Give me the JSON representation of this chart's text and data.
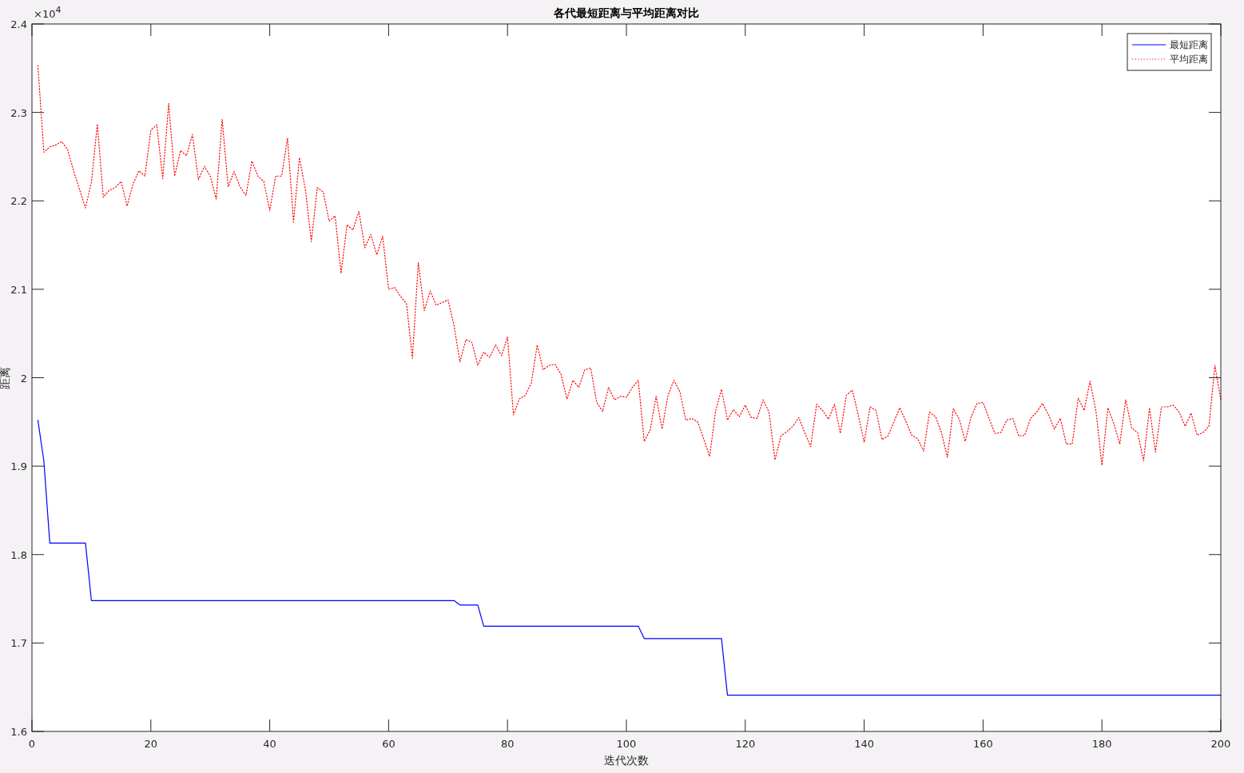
{
  "chart_data": {
    "type": "line",
    "title": "各代最短距离与平均距离对比",
    "xlabel": "迭代次数",
    "ylabel": "距离",
    "xlim": [
      0,
      200
    ],
    "ylim": [
      1.6,
      2.4
    ],
    "xticks": [
      0,
      20,
      40,
      60,
      80,
      100,
      120,
      140,
      160,
      180,
      200
    ],
    "yticks": [
      1.6,
      1.7,
      1.8,
      1.9,
      2,
      2.1,
      2.2,
      2.3,
      2.4
    ],
    "annotations": [
      "×10$^{4}$"
    ],
    "legend": "top right",
    "grid": false,
    "series": [
      {
        "name": "最短距离",
        "color": "#0000ff",
        "line_style": "solid",
        "x": [
          1,
          2,
          3,
          9,
          10,
          71,
          72,
          75,
          76,
          102,
          103,
          116,
          117,
          200
        ],
        "values": [
          1.952,
          1.906,
          1.813,
          1.813,
          1.748,
          1.748,
          1.743,
          1.743,
          1.719,
          1.719,
          1.705,
          1.705,
          1.641,
          1.641
        ]
      },
      {
        "name": "平均距离",
        "color": "#ff0000",
        "line_style": "dotted",
        "x": [
          1,
          2,
          3,
          4,
          5,
          6,
          7,
          8,
          9,
          10,
          11,
          12,
          13,
          14,
          15,
          16,
          17,
          18,
          19,
          20,
          21,
          22,
          23,
          24,
          25,
          26,
          27,
          28,
          29,
          30,
          31,
          32,
          33,
          34,
          35,
          36,
          37,
          38,
          39,
          40,
          41,
          42,
          43,
          44,
          45,
          46,
          47,
          48,
          49,
          50,
          51,
          52,
          53,
          54,
          55,
          56,
          57,
          58,
          59,
          60,
          61,
          62,
          63,
          64,
          65,
          66,
          67,
          68,
          69,
          70,
          71,
          72,
          73,
          74,
          75,
          76,
          77,
          78,
          79,
          80,
          81,
          82,
          83,
          84,
          85,
          86,
          87,
          88,
          89,
          90,
          91,
          92,
          93,
          94,
          95,
          96,
          97,
          98,
          99,
          100,
          101,
          102,
          103,
          104,
          105,
          106,
          107,
          108,
          109,
          110,
          111,
          112,
          113,
          114,
          115,
          116,
          117,
          118,
          119,
          120,
          121,
          122,
          123,
          124,
          125,
          126,
          127,
          128,
          129,
          130,
          131,
          132,
          133,
          134,
          135,
          136,
          137,
          138,
          139,
          140,
          141,
          142,
          143,
          144,
          145,
          146,
          147,
          148,
          149,
          150,
          151,
          152,
          153,
          154,
          155,
          156,
          157,
          158,
          159,
          160,
          161,
          162,
          163,
          164,
          165,
          166,
          167,
          168,
          169,
          170,
          171,
          172,
          173,
          174,
          175,
          176,
          177,
          178,
          179,
          180,
          181,
          182,
          183,
          184,
          185,
          186,
          187,
          188,
          189,
          190,
          191,
          192,
          193,
          194,
          195,
          196,
          197,
          198,
          199,
          200
        ],
        "values": [
          2.353,
          2.255,
          2.261,
          2.263,
          2.267,
          2.258,
          2.234,
          2.213,
          2.192,
          2.221,
          2.287,
          2.204,
          2.212,
          2.215,
          2.222,
          2.194,
          2.219,
          2.234,
          2.228,
          2.28,
          2.286,
          2.225,
          2.31,
          2.228,
          2.257,
          2.251,
          2.275,
          2.224,
          2.239,
          2.228,
          2.202,
          2.292,
          2.216,
          2.233,
          2.216,
          2.206,
          2.245,
          2.228,
          2.222,
          2.189,
          2.228,
          2.228,
          2.271,
          2.176,
          2.249,
          2.213,
          2.154,
          2.215,
          2.21,
          2.177,
          2.183,
          2.118,
          2.173,
          2.167,
          2.188,
          2.147,
          2.162,
          2.139,
          2.16,
          2.1,
          2.102,
          2.092,
          2.084,
          2.022,
          2.13,
          2.076,
          2.098,
          2.082,
          2.085,
          2.088,
          2.059,
          2.018,
          2.043,
          2.04,
          2.014,
          2.029,
          2.023,
          2.037,
          2.025,
          2.046,
          1.958,
          1.976,
          1.98,
          1.994,
          2.037,
          2.009,
          2.014,
          2.015,
          2.004,
          1.976,
          1.997,
          1.989,
          2.009,
          2.011,
          1.972,
          1.962,
          1.989,
          1.975,
          1.979,
          1.978,
          1.989,
          1.997,
          1.928,
          1.941,
          1.979,
          1.942,
          1.98,
          1.997,
          1.984,
          1.952,
          1.954,
          1.95,
          1.931,
          1.911,
          1.962,
          1.987,
          1.952,
          1.964,
          1.956,
          1.969,
          1.955,
          1.954,
          1.975,
          1.961,
          1.907,
          1.934,
          1.939,
          1.945,
          1.955,
          1.938,
          1.922,
          1.97,
          1.963,
          1.953,
          1.97,
          1.937,
          1.98,
          1.986,
          1.958,
          1.927,
          1.967,
          1.963,
          1.93,
          1.934,
          1.95,
          1.966,
          1.951,
          1.935,
          1.931,
          1.917,
          1.961,
          1.956,
          1.938,
          1.91,
          1.965,
          1.953,
          1.928,
          1.956,
          1.971,
          1.972,
          1.954,
          1.937,
          1.938,
          1.952,
          1.954,
          1.934,
          1.935,
          1.954,
          1.961,
          1.971,
          1.958,
          1.942,
          1.954,
          1.925,
          1.925,
          1.977,
          1.963,
          1.996,
          1.962,
          1.901,
          1.966,
          1.948,
          1.925,
          1.975,
          1.943,
          1.938,
          1.906,
          1.966,
          1.916,
          1.967,
          1.967,
          1.969,
          1.961,
          1.945,
          1.96,
          1.935,
          1.938,
          1.945,
          2.014,
          1.975
        ]
      }
    ]
  }
}
